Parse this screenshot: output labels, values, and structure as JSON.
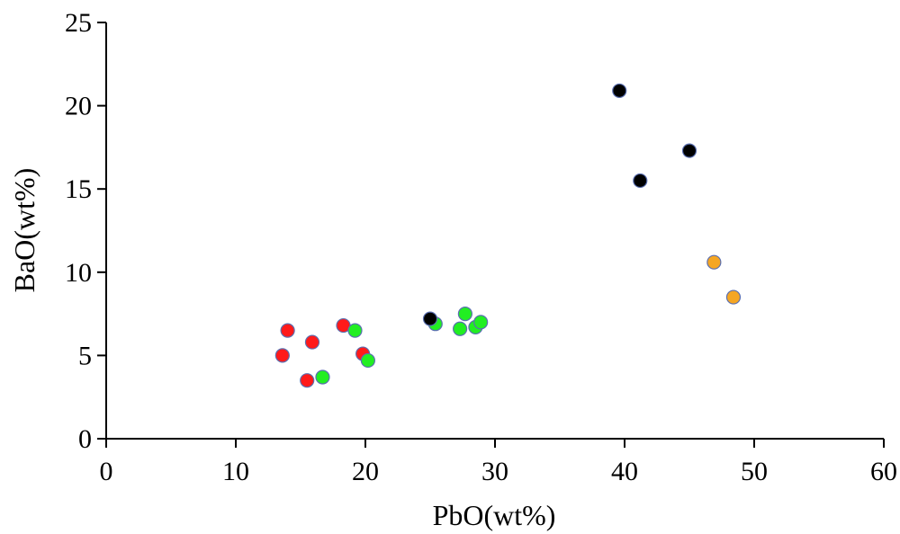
{
  "chart_data": {
    "type": "scatter",
    "title": "",
    "xlabel": "PbO(wt%)",
    "ylabel": "BaO(wt%)",
    "xlim": [
      0,
      60
    ],
    "ylim": [
      0,
      25
    ],
    "x_ticks": [
      0,
      10,
      20,
      30,
      40,
      50,
      60
    ],
    "y_ticks": [
      0,
      5,
      10,
      15,
      20,
      25
    ],
    "grid": false,
    "legend": "none",
    "series": [
      {
        "color": "#ff1a1a",
        "points": [
          {
            "x": 13.6,
            "y": 5.0
          },
          {
            "x": 14.0,
            "y": 6.5
          },
          {
            "x": 15.5,
            "y": 3.5
          },
          {
            "x": 15.9,
            "y": 5.8
          },
          {
            "x": 18.3,
            "y": 6.8
          },
          {
            "x": 19.8,
            "y": 5.1
          }
        ]
      },
      {
        "color": "#22ee22",
        "points": [
          {
            "x": 16.7,
            "y": 3.7
          },
          {
            "x": 19.2,
            "y": 6.5
          },
          {
            "x": 20.2,
            "y": 4.7
          },
          {
            "x": 25.4,
            "y": 6.9
          },
          {
            "x": 27.3,
            "y": 6.6
          },
          {
            "x": 27.7,
            "y": 7.5
          },
          {
            "x": 28.5,
            "y": 6.7
          },
          {
            "x": 28.9,
            "y": 7.0
          }
        ]
      },
      {
        "color": "#000000",
        "points": [
          {
            "x": 25.0,
            "y": 7.2
          },
          {
            "x": 39.6,
            "y": 20.9
          },
          {
            "x": 41.2,
            "y": 15.5
          },
          {
            "x": 45.0,
            "y": 17.3
          }
        ]
      },
      {
        "color": "#f5a623",
        "points": [
          {
            "x": 46.9,
            "y": 10.6
          },
          {
            "x": 48.4,
            "y": 8.5
          }
        ]
      }
    ]
  }
}
